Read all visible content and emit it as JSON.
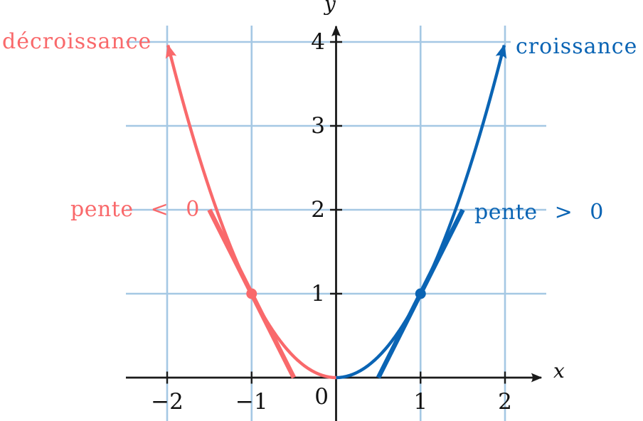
{
  "figure": {
    "background": "#ffffff",
    "colors": {
      "decrease": "#f9696b",
      "increase": "#0a64b4",
      "grid": "#a5c8e4",
      "axis": "#1a1a1a"
    }
  },
  "axes": {
    "x_label": "x",
    "y_label": "y",
    "origin_label": "0",
    "x_tick_labels": [
      "−2",
      "−1",
      "1",
      "2"
    ],
    "y_tick_labels": [
      "1",
      "2",
      "3",
      "4"
    ]
  },
  "annotations": {
    "decrease_label": "décroissance",
    "increase_label": "croissance",
    "negative_slope_label": "pente < 0",
    "positive_slope_label": "pente > 0"
  },
  "chart_data": {
    "type": "line",
    "title": "",
    "function": "y = x^2",
    "power": 2,
    "xlim": [
      -2.5,
      2.65
    ],
    "ylim": [
      0,
      4.35
    ],
    "grid": true,
    "x_ticks": [
      -2,
      -1,
      1,
      2
    ],
    "y_ticks": [
      1,
      2,
      3,
      4
    ],
    "grid_x": [
      -2,
      -1,
      1,
      2
    ],
    "grid_y": [
      1,
      2,
      3,
      4
    ],
    "key_points": [
      [
        -2,
        4
      ],
      [
        -1,
        1
      ],
      [
        0,
        0
      ],
      [
        1,
        1
      ],
      [
        2,
        4
      ]
    ],
    "series": [
      {
        "name": "décroissance",
        "role": "decrease",
        "x_domain": [
          0,
          -1.99
        ],
        "arrow_end": true
      },
      {
        "name": "croissance",
        "role": "increase",
        "x_domain": [
          0,
          1.99
        ],
        "arrow_end": true
      }
    ],
    "tangents": [
      {
        "label": "pente < 0",
        "role": "decrease",
        "point": [
          -1,
          1
        ],
        "slope": -2,
        "x_domain": [
          -1.5,
          -0.5
        ]
      },
      {
        "label": "pente > 0",
        "role": "increase",
        "point": [
          1,
          1
        ],
        "slope": 2,
        "x_domain": [
          0.5,
          1.5
        ]
      }
    ]
  }
}
